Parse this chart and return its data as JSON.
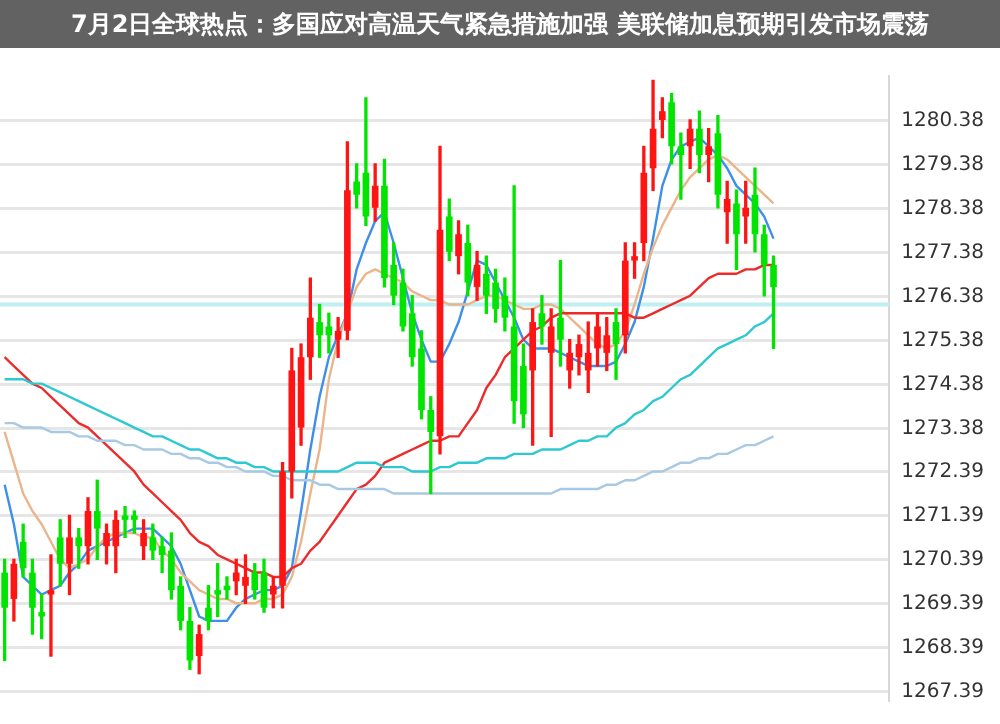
{
  "chart_data": {
    "type": "candlestick",
    "title": "7月2日全球热点：多国应对高温天气紧急措施加强 美联储加息预期引发市场震荡",
    "categories": [
      null,
      null,
      null,
      null,
      null,
      null,
      null,
      null,
      null,
      null,
      null,
      null,
      null,
      null,
      null,
      null,
      null,
      null,
      null,
      null,
      null,
      null,
      null,
      null,
      null,
      null,
      null,
      null,
      null,
      null,
      null,
      null,
      null,
      null,
      null,
      null,
      null,
      null,
      null,
      null,
      null,
      null,
      null,
      null,
      null,
      null,
      null,
      null,
      null,
      null,
      null,
      null,
      null,
      null,
      null,
      null,
      null,
      null,
      null,
      null,
      null,
      null,
      null,
      null,
      null,
      null,
      null,
      null,
      null,
      null,
      null,
      null,
      null,
      null,
      null,
      null,
      null,
      null,
      null,
      null,
      null,
      null,
      null,
      null,
      null,
      null,
      null,
      null,
      null,
      null,
      null,
      null,
      null,
      null,
      null,
      null
    ],
    "ohlc": [
      [
        1270.1,
        1270.4,
        1268.1,
        1269.3
      ],
      [
        1269.5,
        1270.4,
        1269.0,
        1270.3
      ],
      [
        1270.8,
        1271.2,
        1270.0,
        1270.2
      ],
      [
        1270.1,
        1270.4,
        1268.7,
        1269.3
      ],
      [
        1269.2,
        1269.6,
        1268.6,
        1269.1
      ],
      [
        1269.6,
        1270.5,
        1268.2,
        1269.7
      ],
      [
        1270.9,
        1271.3,
        1269.8,
        1270.3
      ],
      [
        1270.3,
        1271.4,
        1269.6,
        1270.9
      ],
      [
        1270.9,
        1271.1,
        1270.2,
        1270.7
      ],
      [
        1270.7,
        1271.8,
        1270.3,
        1271.5
      ],
      [
        1271.5,
        1272.2,
        1270.4,
        1271.1
      ],
      [
        1270.7,
        1271.2,
        1270.3,
        1271.0
      ],
      [
        1270.7,
        1271.5,
        1270.1,
        1271.3
      ],
      [
        1271.4,
        1271.6,
        1270.9,
        1271.3
      ],
      [
        1271.4,
        1271.5,
        1271.0,
        1271.3
      ],
      [
        1270.7,
        1271.3,
        1270.4,
        1271.0
      ],
      [
        1270.9,
        1271.2,
        1270.4,
        1270.6
      ],
      [
        1270.7,
        1270.9,
        1270.1,
        1270.5
      ],
      [
        1270.6,
        1271.0,
        1269.5,
        1269.7
      ],
      [
        1269.8,
        1270.0,
        1268.8,
        1269.0
      ],
      [
        1269.0,
        1269.3,
        1267.9,
        1268.1
      ],
      [
        1268.2,
        1268.9,
        1267.8,
        1268.7
      ],
      [
        1269.3,
        1269.8,
        1268.8,
        1269.0
      ],
      [
        1269.7,
        1270.3,
        1269.1,
        1269.6
      ],
      [
        1269.8,
        1270.0,
        1269.5,
        1269.7
      ],
      [
        1269.9,
        1270.4,
        1269.6,
        1270.1
      ],
      [
        1269.8,
        1270.5,
        1269.4,
        1270.0
      ],
      [
        1270.1,
        1270.3,
        1269.5,
        1269.7
      ],
      [
        1270.1,
        1270.4,
        1269.2,
        1269.3
      ],
      [
        1269.6,
        1270.0,
        1269.3,
        1269.8
      ],
      [
        1269.8,
        1272.6,
        1269.3,
        1272.4
      ],
      [
        1272.4,
        1275.2,
        1271.8,
        1274.7
      ],
      [
        1273.4,
        1275.3,
        1273.0,
        1275.0
      ],
      [
        1275.0,
        1276.8,
        1274.5,
        1275.9
      ],
      [
        1275.8,
        1276.2,
        1275.0,
        1275.5
      ],
      [
        1275.7,
        1276.0,
        1275.1,
        1275.5
      ],
      [
        1275.4,
        1275.9,
        1275.0,
        1275.6
      ],
      [
        1275.6,
        1279.9,
        1275.4,
        1278.8
      ],
      [
        1279.0,
        1279.4,
        1278.4,
        1278.7
      ],
      [
        1279.2,
        1280.9,
        1278.0,
        1278.2
      ],
      [
        1278.4,
        1279.4,
        1278.1,
        1278.9
      ],
      [
        1278.9,
        1279.5,
        1276.6,
        1276.8
      ],
      [
        1277.1,
        1277.6,
        1276.2,
        1276.4
      ],
      [
        1276.7,
        1277.0,
        1275.6,
        1275.7
      ],
      [
        1276.0,
        1276.4,
        1274.8,
        1275.0
      ],
      [
        1275.2,
        1275.6,
        1273.6,
        1273.8
      ],
      [
        1273.8,
        1274.1,
        1271.9,
        1273.3
      ],
      [
        1273.2,
        1279.8,
        1272.8,
        1277.9
      ],
      [
        1278.2,
        1278.6,
        1277.2,
        1277.4
      ],
      [
        1277.3,
        1278.1,
        1276.9,
        1277.8
      ],
      [
        1277.6,
        1278.0,
        1276.4,
        1276.7
      ],
      [
        1276.6,
        1277.4,
        1276.3,
        1277.1
      ],
      [
        1276.9,
        1277.3,
        1276.0,
        1276.4
      ],
      [
        1276.7,
        1277.0,
        1275.8,
        1276.1
      ],
      [
        1276.4,
        1276.8,
        1275.6,
        1275.9
      ],
      [
        1275.7,
        1278.9,
        1273.5,
        1274.0
      ],
      [
        1274.8,
        1275.3,
        1273.4,
        1273.7
      ],
      [
        1274.7,
        1276.1,
        1273.0,
        1275.8
      ],
      [
        1276.0,
        1276.4,
        1275.3,
        1275.7
      ],
      [
        1275.1,
        1276.1,
        1273.2,
        1275.7
      ],
      [
        1275.9,
        1277.2,
        1274.8,
        1275.4
      ],
      [
        1274.7,
        1275.4,
        1274.3,
        1275.1
      ],
      [
        1275.0,
        1275.5,
        1274.6,
        1275.3
      ],
      [
        1274.7,
        1275.8,
        1274.2,
        1275.1
      ],
      [
        1275.2,
        1276.0,
        1274.8,
        1275.7
      ],
      [
        1275.1,
        1275.9,
        1274.7,
        1275.5
      ],
      [
        1275.8,
        1276.1,
        1274.5,
        1275.3
      ],
      [
        1275.5,
        1277.6,
        1275.1,
        1277.2
      ],
      [
        1277.2,
        1277.6,
        1276.8,
        1277.3
      ],
      [
        1277.6,
        1279.8,
        1277.2,
        1279.2
      ],
      [
        1279.3,
        1281.3,
        1278.8,
        1280.2
      ],
      [
        1280.4,
        1280.9,
        1280.0,
        1280.6
      ],
      [
        1280.8,
        1281.0,
        1279.4,
        1279.8
      ],
      [
        1279.8,
        1280.1,
        1278.6,
        1279.6
      ],
      [
        1279.8,
        1280.4,
        1279.3,
        1280.2
      ],
      [
        1280.2,
        1280.6,
        1279.2,
        1279.6
      ],
      [
        1279.6,
        1280.2,
        1279.0,
        1279.8
      ],
      [
        1280.1,
        1280.5,
        1278.4,
        1278.7
      ],
      [
        1278.3,
        1279.0,
        1277.6,
        1278.6
      ],
      [
        1278.5,
        1278.8,
        1277.0,
        1277.8
      ],
      [
        1278.2,
        1279.0,
        1277.6,
        1278.4
      ],
      [
        1278.7,
        1279.3,
        1277.4,
        1277.8
      ],
      [
        1277.8,
        1278.0,
        1276.4,
        1277.1
      ],
      [
        1277.1,
        1277.3,
        1275.2,
        1276.6
      ],
      null,
      null,
      null,
      null,
      null,
      null,
      null,
      null,
      null,
      null,
      null,
      null
    ],
    "series": [
      {
        "type": "line",
        "color": "#a9c9e2",
        "values": [
          1273.5,
          1273.5,
          1273.4,
          1273.4,
          1273.4,
          1273.3,
          1273.3,
          1273.3,
          1273.2,
          1273.2,
          1273.1,
          1273.1,
          1273.1,
          1273.0,
          1273.0,
          1272.9,
          1272.9,
          1272.9,
          1272.8,
          1272.8,
          1272.7,
          1272.7,
          1272.6,
          1272.6,
          1272.5,
          1272.5,
          1272.4,
          1272.4,
          1272.4,
          1272.3,
          1272.3,
          1272.2,
          1272.2,
          1272.2,
          1272.1,
          1272.1,
          1272.0,
          1272.0,
          1272.0,
          1272.0,
          1272.0,
          1272.0,
          1271.9,
          1271.9,
          1271.9,
          1271.9,
          1271.9,
          1271.9,
          1271.9,
          1271.9,
          1271.9,
          1271.9,
          1271.9,
          1271.9,
          1271.9,
          1271.9,
          1271.9,
          1271.9,
          1271.9,
          1271.9,
          1272.0,
          1272.0,
          1272.0,
          1272.0,
          1272.0,
          1272.1,
          1272.1,
          1272.2,
          1272.2,
          1272.3,
          1272.4,
          1272.4,
          1272.5,
          1272.6,
          1272.6,
          1272.7,
          1272.7,
          1272.8,
          1272.8,
          1272.9,
          1273.0,
          1273.0,
          1273.1,
          1273.2,
          null,
          null,
          null,
          null,
          null,
          null,
          null,
          null,
          null,
          null,
          null,
          null
        ]
      },
      {
        "type": "line",
        "color": "#2ec8d2",
        "values": [
          1274.5,
          1274.5,
          1274.5,
          1274.4,
          1274.4,
          1274.3,
          1274.2,
          1274.1,
          1274.0,
          1273.9,
          1273.8,
          1273.7,
          1273.6,
          1273.5,
          1273.4,
          1273.3,
          1273.2,
          1273.2,
          1273.1,
          1273.0,
          1272.9,
          1272.9,
          1272.8,
          1272.7,
          1272.7,
          1272.6,
          1272.6,
          1272.5,
          1272.5,
          1272.4,
          1272.4,
          1272.4,
          1272.4,
          1272.4,
          1272.4,
          1272.4,
          1272.4,
          1272.5,
          1272.6,
          1272.6,
          1272.6,
          1272.5,
          1272.5,
          1272.5,
          1272.4,
          1272.4,
          1272.4,
          1272.5,
          1272.5,
          1272.6,
          1272.6,
          1272.6,
          1272.7,
          1272.7,
          1272.7,
          1272.8,
          1272.8,
          1272.8,
          1272.9,
          1272.9,
          1272.9,
          1273.0,
          1273.1,
          1273.1,
          1273.2,
          1273.2,
          1273.4,
          1273.5,
          1273.7,
          1273.8,
          1274.0,
          1274.1,
          1274.3,
          1274.5,
          1274.6,
          1274.8,
          1275.0,
          1275.2,
          1275.3,
          1275.4,
          1275.5,
          1275.7,
          1275.8,
          1276.0,
          null,
          null,
          null,
          null,
          null,
          null,
          null,
          null,
          null,
          null,
          null,
          null
        ]
      },
      {
        "type": "line",
        "color": "#ec2b2b",
        "values": [
          1275.0,
          1274.8,
          1274.6,
          1274.4,
          1274.3,
          1274.1,
          1273.9,
          1273.7,
          1273.5,
          1273.4,
          1273.2,
          1273.0,
          1272.8,
          1272.6,
          1272.4,
          1272.1,
          1271.9,
          1271.7,
          1271.5,
          1271.3,
          1271.0,
          1270.8,
          1270.7,
          1270.5,
          1270.4,
          1270.3,
          1270.2,
          1270.1,
          1270.1,
          1270.0,
          1270.0,
          1270.2,
          1270.3,
          1270.6,
          1270.8,
          1271.1,
          1271.4,
          1271.7,
          1272.0,
          1272.1,
          1272.3,
          1272.6,
          1272.7,
          1272.8,
          1272.9,
          1273.0,
          1273.1,
          1273.1,
          1273.2,
          1273.2,
          1273.5,
          1273.8,
          1274.3,
          1274.6,
          1275.0,
          1275.2,
          1275.4,
          1275.6,
          1275.7,
          1275.9,
          1276.0,
          1276.0,
          1276.0,
          1276.0,
          1276.0,
          1276.0,
          1276.0,
          1276.0,
          1275.9,
          1275.9,
          1276.0,
          1276.1,
          1276.2,
          1276.3,
          1276.4,
          1276.6,
          1276.8,
          1276.9,
          1276.9,
          1276.9,
          1277.0,
          1277.0,
          1277.1,
          1277.1,
          null,
          null,
          null,
          null,
          null,
          null,
          null,
          null,
          null,
          null,
          null,
          null
        ]
      },
      {
        "type": "line",
        "color": "#ebb58c",
        "values": [
          1273.3,
          1272.6,
          1271.9,
          1271.5,
          1271.2,
          1270.8,
          1270.4,
          1270.2,
          1270.3,
          1270.4,
          1270.7,
          1270.9,
          1271.0,
          1271.0,
          1271.0,
          1270.9,
          1270.9,
          1270.6,
          1270.4,
          1270.1,
          1269.9,
          1269.7,
          1269.6,
          1269.5,
          1269.5,
          1269.4,
          1269.4,
          1269.4,
          1269.5,
          1269.5,
          1269.6,
          1270.0,
          1270.8,
          1271.9,
          1272.9,
          1274.5,
          1275.4,
          null,
          1276.6,
          1276.9,
          1277.0,
          1276.9,
          1276.8,
          1276.7,
          1276.5,
          1276.4,
          1276.3,
          1276.3,
          1276.2,
          1276.2,
          1276.2,
          1276.3,
          1276.4,
          1276.4,
          1276.3,
          1276.2,
          1276.1,
          1276.1,
          1276.2,
          1276.2,
          1276.1,
          1275.9,
          1275.7,
          1275.5,
          1275.3,
          1275.2,
          1275.3,
          1275.6,
          1276.2,
          1276.9,
          1277.5,
          1278.0,
          1278.4,
          1278.8,
          1279.1,
          1279.3,
          1279.5,
          1279.6,
          1279.5,
          1279.3,
          1279.1,
          1278.9,
          1278.7,
          1278.5,
          null,
          null,
          null,
          null,
          null,
          null,
          null,
          null,
          null,
          null,
          null,
          null
        ]
      },
      {
        "type": "line",
        "color": "#3d8fe8",
        "values": [
          1272.1,
          1271.2,
          1270.0,
          1269.8,
          1269.6,
          1269.7,
          1269.8,
          1270.1,
          1270.3,
          1270.6,
          1270.7,
          null,
          null,
          1271.0,
          1271.1,
          1271.1,
          1271.1,
          1270.9,
          1270.7,
          1270.3,
          1269.7,
          1269.1,
          1269.0,
          1269.0,
          1269.0,
          1269.3,
          1269.5,
          1269.6,
          1269.7,
          1269.7,
          1269.8,
          1270.2,
          1271.5,
          1272.9,
          1274.1,
          1275.0,
          1275.5,
          1276.0,
          1277.0,
          1277.6,
          1278.1,
          1278.3,
          1277.6,
          1276.8,
          1276.0,
          1275.4,
          1274.9,
          1274.9,
          1275.3,
          1275.8,
          1276.5,
          1277.2,
          1277.1,
          1276.7,
          1276.3,
          1275.9,
          1275.4,
          1275.2,
          1275.2,
          1275.2,
          1275.1,
          1275.0,
          1274.9,
          1274.8,
          1274.8,
          1274.8,
          1274.9,
          1275.3,
          1275.8,
          1276.6,
          1277.7,
          1278.9,
          1279.5,
          1279.8,
          1279.9,
          1280.0,
          1279.8,
          1279.6,
          1279.3,
          1278.9,
          1278.7,
          1278.5,
          1278.2,
          1277.7,
          null,
          null,
          null,
          null,
          null,
          null,
          null,
          null,
          null,
          null,
          null,
          null
        ]
      }
    ],
    "ylim": [
      1267.2,
      1281.4
    ],
    "yticks": [
      1267.39,
      1268.39,
      1269.39,
      1270.39,
      1271.39,
      1272.39,
      1273.38,
      1274.38,
      1275.38,
      1276.38,
      1277.38,
      1278.38,
      1279.38,
      1280.38
    ],
    "ref_lines": [
      {
        "axis": "y",
        "value": 1276.2,
        "color": "#bfeff3"
      }
    ],
    "grid": "y",
    "legend": false,
    "tick_labels": "y",
    "marker": "none",
    "line_style": "solid"
  }
}
